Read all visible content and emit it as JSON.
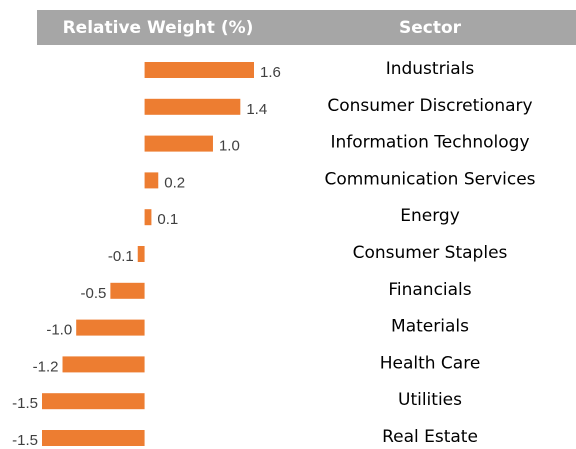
{
  "chart_data": {
    "type": "bar",
    "orientation": "horizontal",
    "headers": [
      "Relative Weight (%)",
      "Sector"
    ],
    "categories": [
      "Industrials",
      "Consumer Discretionary",
      "Information Technology",
      "Communication Services",
      "Energy",
      "Consumer Staples",
      "Financials",
      "Materials",
      "Health Care",
      "Utilities",
      "Real Estate"
    ],
    "values": [
      1.6,
      1.4,
      1.0,
      0.2,
      0.1,
      -0.1,
      -0.5,
      -1.0,
      -1.2,
      -1.5,
      -1.5
    ],
    "value_labels": [
      "1.6",
      "1.4",
      "1.0",
      "0.2",
      "0.1",
      "-0.1",
      "-0.5",
      "-1.0",
      "-1.2",
      "-1.5",
      "-1.5"
    ],
    "color": "#ed7d31",
    "header_color": "#a6a6a6"
  }
}
